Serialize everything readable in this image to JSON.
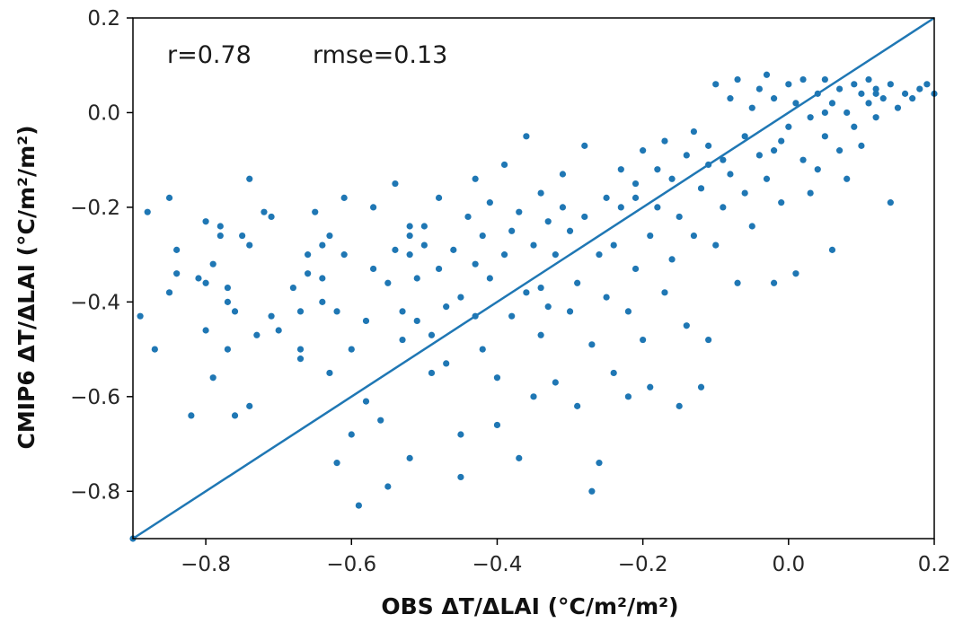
{
  "chart_data": {
    "type": "scatter",
    "title": "",
    "xlabel": "OBS   ΔT/ΔLAI (°C/m²/m²)",
    "ylabel": "CMIP6   ΔT/ΔLAI (°C/m²/m²)",
    "xlim": [
      -0.9,
      0.2
    ],
    "ylim": [
      -0.9,
      0.2
    ],
    "xticks": [
      -0.8,
      -0.6,
      -0.4,
      -0.2,
      0.0,
      0.2
    ],
    "yticks": [
      -0.8,
      -0.6,
      -0.4,
      -0.2,
      0.0,
      0.2
    ],
    "xtick_labels": [
      "−0.8",
      "−0.6",
      "−0.4",
      "−0.2",
      "0.0",
      "0.2"
    ],
    "ytick_labels": [
      "−0.8",
      "−0.6",
      "−0.4",
      "−0.2",
      "0.0",
      "0.2"
    ],
    "annotations": [
      "r=0.78",
      "rmse=0.13"
    ],
    "grid": false,
    "point_color": "#1f77b4",
    "line_color": "#1f77b4",
    "reference_line": {
      "from": [
        -0.9,
        -0.9
      ],
      "to": [
        0.2,
        0.2
      ]
    },
    "points": [
      [
        -0.89,
        -0.43
      ],
      [
        -0.88,
        -0.21
      ],
      [
        -0.87,
        -0.5
      ],
      [
        -0.85,
        -0.18
      ],
      [
        -0.85,
        -0.38
      ],
      [
        -0.84,
        -0.29
      ],
      [
        -0.84,
        -0.34
      ],
      [
        -0.82,
        -0.64
      ],
      [
        -0.81,
        -0.35
      ],
      [
        -0.8,
        -0.23
      ],
      [
        -0.8,
        -0.46
      ],
      [
        -0.8,
        -0.36
      ],
      [
        -0.79,
        -0.56
      ],
      [
        -0.79,
        -0.32
      ],
      [
        -0.78,
        -0.24
      ],
      [
        -0.78,
        -0.26
      ],
      [
        -0.77,
        -0.37
      ],
      [
        -0.77,
        -0.4
      ],
      [
        -0.77,
        -0.5
      ],
      [
        -0.76,
        -0.42
      ],
      [
        -0.76,
        -0.64
      ],
      [
        -0.75,
        -0.26
      ],
      [
        -0.74,
        -0.14
      ],
      [
        -0.74,
        -0.28
      ],
      [
        -0.74,
        -0.62
      ],
      [
        -0.73,
        -0.47
      ],
      [
        -0.72,
        -0.21
      ],
      [
        -0.71,
        -0.22
      ],
      [
        -0.71,
        -0.43
      ],
      [
        -0.7,
        -0.46
      ],
      [
        -0.68,
        -0.37
      ],
      [
        -0.67,
        -0.42
      ],
      [
        -0.67,
        -0.52
      ],
      [
        -0.67,
        -0.5
      ],
      [
        -0.66,
        -0.34
      ],
      [
        -0.65,
        -0.21
      ],
      [
        -0.64,
        -0.28
      ],
      [
        -0.64,
        -0.35
      ],
      [
        -0.64,
        -0.4
      ],
      [
        -0.63,
        -0.26
      ],
      [
        -0.63,
        -0.55
      ],
      [
        -0.62,
        -0.74
      ],
      [
        -0.62,
        -0.42
      ],
      [
        -0.61,
        -0.18
      ],
      [
        -0.61,
        -0.3
      ],
      [
        -0.6,
        -0.68
      ],
      [
        -0.6,
        -0.5
      ],
      [
        -0.59,
        -0.83
      ],
      [
        -0.58,
        -0.61
      ],
      [
        -0.58,
        -0.44
      ],
      [
        -0.57,
        -0.2
      ],
      [
        -0.57,
        -0.33
      ],
      [
        -0.56,
        -0.65
      ],
      [
        -0.55,
        -0.79
      ],
      [
        -0.55,
        -0.36
      ],
      [
        -0.54,
        -0.29
      ],
      [
        -0.54,
        -0.15
      ],
      [
        -0.53,
        -0.42
      ],
      [
        -0.53,
        -0.48
      ],
      [
        -0.52,
        -0.24
      ],
      [
        -0.52,
        -0.26
      ],
      [
        -0.52,
        -0.73
      ],
      [
        -0.51,
        -0.35
      ],
      [
        -0.51,
        -0.44
      ],
      [
        -0.5,
        -0.28
      ],
      [
        -0.5,
        -0.24
      ],
      [
        -0.49,
        -0.55
      ],
      [
        -0.49,
        -0.47
      ],
      [
        -0.48,
        -0.33
      ],
      [
        -0.48,
        -0.18
      ],
      [
        -0.47,
        -0.41
      ],
      [
        -0.47,
        -0.53
      ],
      [
        -0.46,
        -0.29
      ],
      [
        -0.45,
        -0.77
      ],
      [
        -0.45,
        -0.68
      ],
      [
        -0.45,
        -0.39
      ],
      [
        -0.44,
        -0.22
      ],
      [
        -0.43,
        -0.43
      ],
      [
        -0.43,
        -0.14
      ],
      [
        -0.42,
        -0.5
      ],
      [
        -0.42,
        -0.26
      ],
      [
        -0.41,
        -0.35
      ],
      [
        -0.41,
        -0.19
      ],
      [
        -0.4,
        -0.56
      ],
      [
        -0.4,
        -0.66
      ],
      [
        -0.39,
        -0.3
      ],
      [
        -0.39,
        -0.11
      ],
      [
        -0.38,
        -0.43
      ],
      [
        -0.38,
        -0.25
      ],
      [
        -0.37,
        -0.73
      ],
      [
        -0.37,
        -0.21
      ],
      [
        -0.36,
        -0.05
      ],
      [
        -0.36,
        -0.38
      ],
      [
        -0.35,
        -0.28
      ],
      [
        -0.35,
        -0.6
      ],
      [
        -0.34,
        -0.17
      ],
      [
        -0.34,
        -0.47
      ],
      [
        -0.33,
        -0.23
      ],
      [
        -0.33,
        -0.41
      ],
      [
        -0.32,
        -0.57
      ],
      [
        -0.32,
        -0.3
      ],
      [
        -0.31,
        -0.13
      ],
      [
        -0.31,
        -0.2
      ],
      [
        -0.3,
        -0.42
      ],
      [
        -0.3,
        -0.25
      ],
      [
        -0.29,
        -0.62
      ],
      [
        -0.29,
        -0.36
      ],
      [
        -0.28,
        -0.22
      ],
      [
        -0.28,
        -0.07
      ],
      [
        -0.27,
        -0.8
      ],
      [
        -0.27,
        -0.49
      ],
      [
        -0.26,
        -0.74
      ],
      [
        -0.26,
        -0.3
      ],
      [
        -0.25,
        -0.18
      ],
      [
        -0.25,
        -0.39
      ],
      [
        -0.24,
        -0.28
      ],
      [
        -0.24,
        -0.55
      ],
      [
        -0.23,
        -0.2
      ],
      [
        -0.23,
        -0.12
      ],
      [
        -0.22,
        -0.6
      ],
      [
        -0.22,
        -0.42
      ],
      [
        -0.21,
        -0.33
      ],
      [
        -0.21,
        -0.18
      ],
      [
        -0.2,
        -0.48
      ],
      [
        -0.2,
        -0.08
      ],
      [
        -0.19,
        -0.26
      ],
      [
        -0.19,
        -0.58
      ],
      [
        -0.18,
        -0.2
      ],
      [
        -0.18,
        -0.12
      ],
      [
        -0.17,
        -0.38
      ],
      [
        -0.17,
        -0.06
      ],
      [
        -0.16,
        -0.31
      ],
      [
        -0.16,
        -0.14
      ],
      [
        -0.15,
        -0.62
      ],
      [
        -0.15,
        -0.22
      ],
      [
        -0.14,
        -0.45
      ],
      [
        -0.14,
        -0.09
      ],
      [
        -0.13,
        -0.04
      ],
      [
        -0.13,
        -0.26
      ],
      [
        -0.12,
        -0.58
      ],
      [
        -0.12,
        -0.16
      ],
      [
        -0.11,
        -0.48
      ],
      [
        -0.11,
        -0.07
      ],
      [
        -0.1,
        -0.28
      ],
      [
        -0.1,
        0.06
      ],
      [
        -0.09,
        -0.1
      ],
      [
        -0.09,
        -0.2
      ],
      [
        -0.08,
        0.03
      ],
      [
        -0.08,
        -0.13
      ],
      [
        -0.07,
        -0.36
      ],
      [
        -0.07,
        0.07
      ],
      [
        -0.06,
        -0.05
      ],
      [
        -0.06,
        -0.17
      ],
      [
        -0.05,
        0.01
      ],
      [
        -0.05,
        -0.24
      ],
      [
        -0.04,
        0.05
      ],
      [
        -0.04,
        -0.09
      ],
      [
        -0.03,
        0.08
      ],
      [
        -0.03,
        -0.14
      ],
      [
        -0.02,
        -0.36
      ],
      [
        -0.02,
        0.03
      ],
      [
        -0.01,
        -0.06
      ],
      [
        -0.01,
        -0.19
      ],
      [
        0.0,
        0.06
      ],
      [
        0.0,
        -0.03
      ],
      [
        0.01,
        -0.34
      ],
      [
        0.01,
        0.02
      ],
      [
        0.02,
        -0.1
      ],
      [
        0.02,
        0.07
      ],
      [
        0.03,
        -0.17
      ],
      [
        0.03,
        -0.01
      ],
      [
        0.04,
        0.04
      ],
      [
        0.04,
        -0.12
      ],
      [
        0.05,
        0.07
      ],
      [
        0.05,
        -0.05
      ],
      [
        0.06,
        -0.29
      ],
      [
        0.06,
        0.02
      ],
      [
        0.07,
        -0.08
      ],
      [
        0.07,
        0.05
      ],
      [
        0.08,
        -0.14
      ],
      [
        0.08,
        0.0
      ],
      [
        0.09,
        0.06
      ],
      [
        0.09,
        -0.03
      ],
      [
        0.1,
        0.04
      ],
      [
        0.1,
        -0.07
      ],
      [
        0.11,
        0.07
      ],
      [
        0.11,
        0.02
      ],
      [
        0.12,
        -0.01
      ],
      [
        0.12,
        0.05
      ],
      [
        0.13,
        0.03
      ],
      [
        0.14,
        -0.19
      ],
      [
        0.14,
        0.06
      ],
      [
        0.15,
        0.01
      ],
      [
        0.16,
        0.04
      ],
      [
        0.17,
        0.03
      ],
      [
        0.18,
        0.05
      ],
      [
        0.19,
        0.06
      ],
      [
        0.2,
        0.04
      ],
      [
        -0.9,
        -0.9
      ],
      [
        -0.66,
        -0.3
      ],
      [
        -0.52,
        -0.3
      ],
      [
        -0.43,
        -0.32
      ],
      [
        -0.34,
        -0.37
      ],
      [
        -0.21,
        -0.15
      ],
      [
        -0.11,
        -0.11
      ],
      [
        -0.02,
        -0.08
      ],
      [
        0.05,
        0.0
      ],
      [
        0.12,
        0.04
      ]
    ]
  }
}
